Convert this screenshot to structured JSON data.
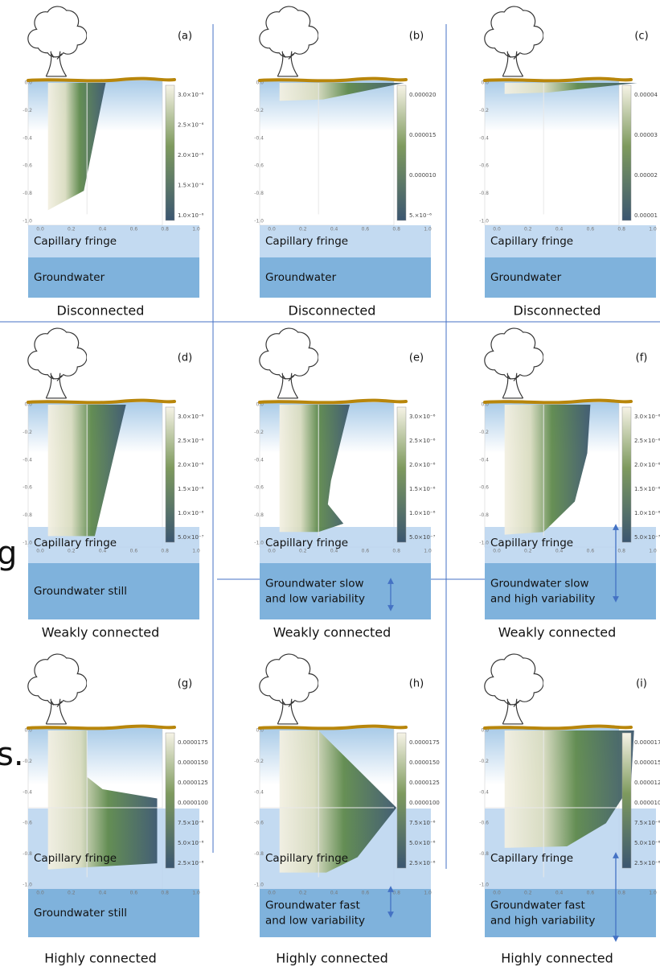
{
  "axes": {
    "y": [
      "0.0",
      "-0.2",
      "-0.4",
      "-0.6",
      "-0.8",
      "-1.0"
    ],
    "x": [
      "0.0",
      "0.2",
      "0.4",
      "0.6",
      "0.8",
      "1.0"
    ]
  },
  "fragments": [
    "g",
    "s."
  ],
  "panels": [
    {
      "label": "(a)",
      "colorbar": [
        "3.0×10⁻⁶",
        "2.5×10⁻⁶",
        "2.0×10⁻⁶",
        "1.5×10⁻⁶",
        "1.0×10⁻⁶"
      ],
      "fringe": "Capillary fringe",
      "groundwater": [
        "Groundwater"
      ],
      "caption": "Disconnected"
    },
    {
      "label": "(b)",
      "colorbar": [
        "0.000020",
        "0.000015",
        "0.000010",
        "5.×10⁻⁶"
      ],
      "fringe": "Capillary fringe",
      "groundwater": [
        "Groundwater"
      ],
      "caption": "Disconnected"
    },
    {
      "label": "(c)",
      "colorbar": [
        "0.00004",
        "0.00003",
        "0.00002",
        "0.00001"
      ],
      "fringe": "Capillary fringe",
      "groundwater": [
        "Groundwater"
      ],
      "caption": "Disconnected"
    },
    {
      "label": "(d)",
      "colorbar": [
        "3.0×10⁻⁶",
        "2.5×10⁻⁶",
        "2.0×10⁻⁶",
        "1.5×10⁻⁶",
        "1.0×10⁻⁶",
        "5.0×10⁻⁷"
      ],
      "fringe": "Capillary fringe",
      "groundwater": [
        "Groundwater still"
      ],
      "caption": "Weakly connected"
    },
    {
      "label": "(e)",
      "colorbar": [
        "3.0×10⁻⁶",
        "2.5×10⁻⁶",
        "2.0×10⁻⁶",
        "1.5×10⁻⁶",
        "1.0×10⁻⁶",
        "5.0×10⁻⁷"
      ],
      "fringe": "Capillary fringe",
      "groundwater": [
        "Groundwater slow",
        "and low variability"
      ],
      "caption": "Weakly connected"
    },
    {
      "label": "(f)",
      "colorbar": [
        "3.0×10⁻⁶",
        "2.5×10⁻⁶",
        "2.0×10⁻⁶",
        "1.5×10⁻⁶",
        "1.0×10⁻⁶",
        "5.0×10⁻⁷"
      ],
      "fringe": "Capillary fringe",
      "groundwater": [
        "Groundwater slow",
        "and high variability"
      ],
      "caption": "Weakly connected"
    },
    {
      "label": "(g)",
      "colorbar": [
        "0.0000175",
        "0.0000150",
        "0.0000125",
        "0.0000100",
        "7.5×10⁻⁶",
        "5.0×10⁻⁶",
        "2.5×10⁻⁶"
      ],
      "fringe": "Capillary fringe",
      "groundwater": [
        "Groundwater still"
      ],
      "caption": "Highly connected"
    },
    {
      "label": "(h)",
      "colorbar": [
        "0.0000175",
        "0.0000150",
        "0.0000125",
        "0.0000100",
        "7.5×10⁻⁶",
        "5.0×10⁻⁶",
        "2.5×10⁻⁶"
      ],
      "fringe": "Capillary fringe",
      "groundwater": [
        "Groundwater fast",
        "and low variability"
      ],
      "caption": "Highly connected"
    },
    {
      "label": "(i)",
      "colorbar": [
        "0.000017",
        "0.000015",
        "0.000012",
        "0.000010",
        "7.5×10⁻⁶",
        "5.0×10⁻⁶",
        "2.5×10⁻⁶"
      ],
      "fringe": "Capillary fringe",
      "groundwater": [
        "Groundwater fast",
        "and high variability"
      ],
      "caption": "Highly connected"
    }
  ]
}
